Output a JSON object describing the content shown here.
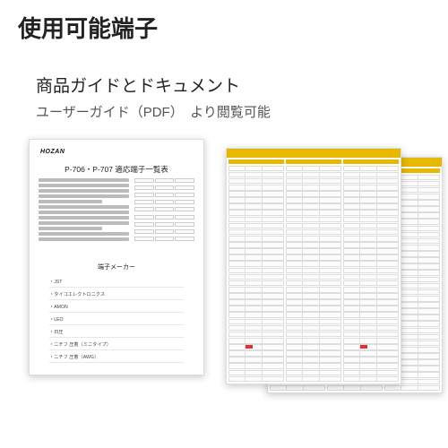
{
  "title": "使用可能端子",
  "subtitle": "商品ガイドとドキュメント",
  "caption": "ユーザーガイド（PDF）　より閲覧可能",
  "page1": {
    "brand": "HOZAN",
    "title": "P-706・P-707 適応端子一覧表",
    "makers_title": "端子メーカー",
    "makers": [
      "JST",
      "タイコエレクトロニクス",
      "AMON",
      "LEO",
      "日圧",
      "ニチフ 圧着（ミニタイプ）",
      "ニチフ 圧着（AWG）"
    ]
  },
  "colors": {
    "header_band": "#e6b800",
    "red_mark": "#e03030",
    "text_main": "#222222",
    "text_sub": "#555555"
  },
  "table_page": {
    "columns": 3,
    "rows_per_column": 34
  }
}
